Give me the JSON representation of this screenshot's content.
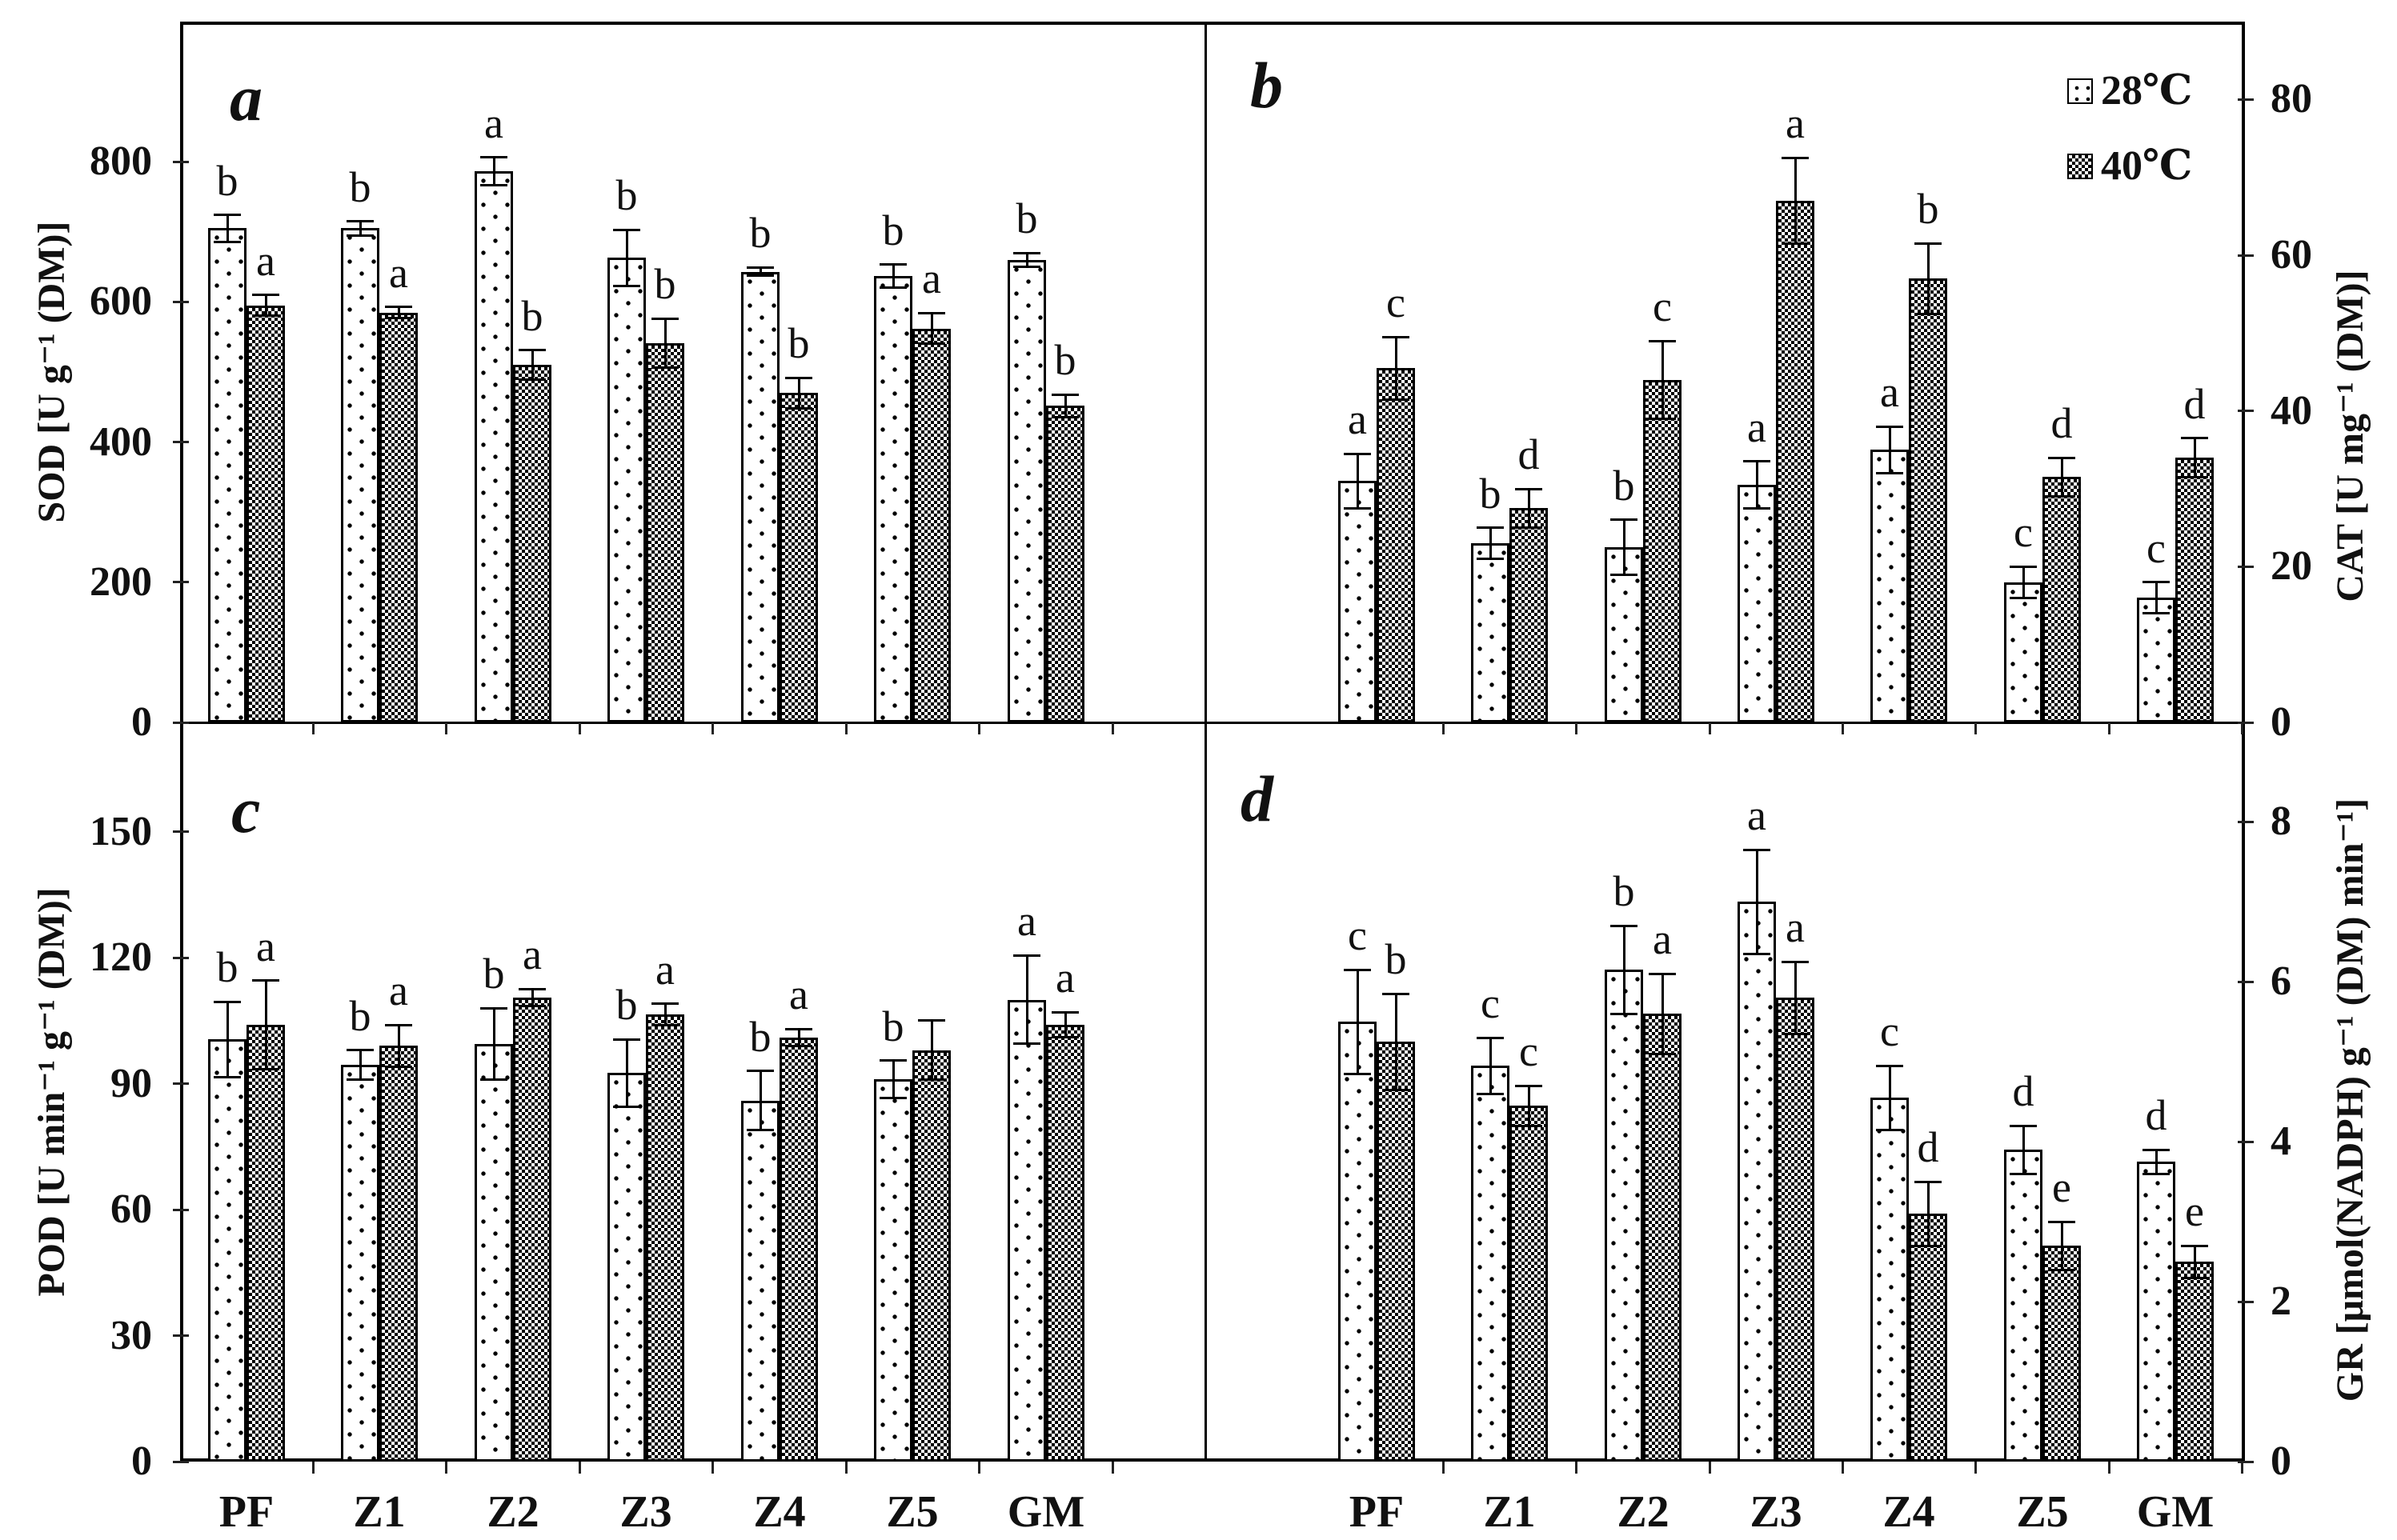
{
  "legend": {
    "items": [
      {
        "label": "28℃",
        "pattern": "dotted-white"
      },
      {
        "label": "40℃",
        "pattern": "dark-checker"
      }
    ]
  },
  "chart_data": [
    {
      "panel": "a",
      "type": "bar",
      "ylabel": "SOD [U g⁻¹ (DM)]",
      "axis_side": "left",
      "ylim": [
        0,
        1000
      ],
      "yticks": [
        0,
        200,
        400,
        600,
        800
      ],
      "grid": false,
      "categories": [
        "PF",
        "Z1",
        "Z2",
        "Z3",
        "Z4",
        "Z5",
        "GM"
      ],
      "series": [
        {
          "name": "28℃",
          "values": [
            705,
            705,
            786,
            663,
            643,
            637,
            660
          ],
          "errors": [
            19,
            10,
            20,
            40,
            6,
            16,
            10
          ],
          "letters": [
            "b",
            "b",
            "a",
            "b",
            "b",
            "b",
            "b"
          ]
        },
        {
          "name": "40℃",
          "values": [
            595,
            585,
            510,
            541,
            470,
            562,
            452
          ],
          "errors": [
            15,
            8,
            21,
            35,
            22,
            22,
            16
          ],
          "letters": [
            "a",
            "a",
            "b",
            "b",
            "b",
            "a",
            "b"
          ]
        }
      ]
    },
    {
      "panel": "b",
      "type": "bar",
      "ylabel": "CAT [U mg⁻¹ (DM)]",
      "axis_side": "right",
      "ylim": [
        0,
        90
      ],
      "yticks": [
        0,
        20,
        40,
        60,
        80
      ],
      "grid": false,
      "categories": [
        "PF",
        "Z1",
        "Z2",
        "Z3",
        "Z4",
        "Z5",
        "GM"
      ],
      "series": [
        {
          "name": "28℃",
          "values": [
            31,
            23,
            22.5,
            30.5,
            35,
            18,
            16
          ],
          "errors": [
            3.5,
            2,
            3.5,
            3,
            3,
            2,
            2
          ],
          "letters": [
            "a",
            "b",
            "b",
            "a",
            "a",
            "c",
            "c"
          ]
        },
        {
          "name": "40℃",
          "values": [
            45.5,
            27.5,
            44,
            67,
            57,
            31.5,
            34
          ],
          "errors": [
            4,
            2.5,
            5,
            5.5,
            4.5,
            2.5,
            2.5
          ],
          "letters": [
            "c",
            "d",
            "c",
            "a",
            "b",
            "d",
            "d"
          ]
        }
      ]
    },
    {
      "panel": "c",
      "type": "bar",
      "ylabel": "POD [U min⁻¹ g⁻¹ (DM)]",
      "axis_side": "left",
      "ylim": [
        0,
        176
      ],
      "yticks": [
        0,
        30,
        60,
        90,
        120,
        150
      ],
      "grid": false,
      "categories": [
        "PF",
        "Z1",
        "Z2",
        "Z3",
        "Z4",
        "Z5",
        "GM"
      ],
      "series": [
        {
          "name": "28℃",
          "values": [
            100.5,
            94.5,
            99.5,
            92.5,
            86,
            91,
            110
          ],
          "errors": [
            9,
            3.5,
            8.5,
            8,
            7,
            4.5,
            10.5
          ],
          "letters": [
            "b",
            "b",
            "b",
            "b",
            "b",
            "b",
            "a"
          ]
        },
        {
          "name": "40℃",
          "values": [
            104,
            99,
            110.5,
            106.5,
            101,
            98,
            104
          ],
          "errors": [
            10.5,
            5,
            2,
            2.5,
            2,
            7,
            3
          ],
          "letters": [
            "a",
            "a",
            "a",
            "a",
            "a",
            "",
            "a"
          ]
        }
      ]
    },
    {
      "panel": "d",
      "type": "bar",
      "ylabel": "GR [μmol(NADPH) g⁻¹ (DM) min⁻¹]",
      "axis_side": "right",
      "ylim": [
        0,
        9.24
      ],
      "yticks": [
        0,
        2,
        4,
        6,
        8
      ],
      "grid": false,
      "categories": [
        "PF",
        "Z1",
        "Z2",
        "Z3",
        "Z4",
        "Z5",
        "GM"
      ],
      "series": [
        {
          "name": "28℃",
          "values": [
            5.5,
            4.95,
            6.15,
            7.0,
            4.55,
            3.9,
            3.75
          ],
          "errors": [
            0.65,
            0.35,
            0.55,
            0.65,
            0.4,
            0.3,
            0.15
          ],
          "letters": [
            "c",
            "c",
            "b",
            "a",
            "c",
            "d",
            "d"
          ]
        },
        {
          "name": "40℃",
          "values": [
            5.25,
            4.45,
            5.6,
            5.8,
            3.1,
            2.7,
            2.5
          ],
          "errors": [
            0.6,
            0.25,
            0.5,
            0.45,
            0.4,
            0.3,
            0.2
          ],
          "letters": [
            "b",
            "c",
            "a",
            "a",
            "d",
            "e",
            "e"
          ]
        }
      ]
    }
  ]
}
